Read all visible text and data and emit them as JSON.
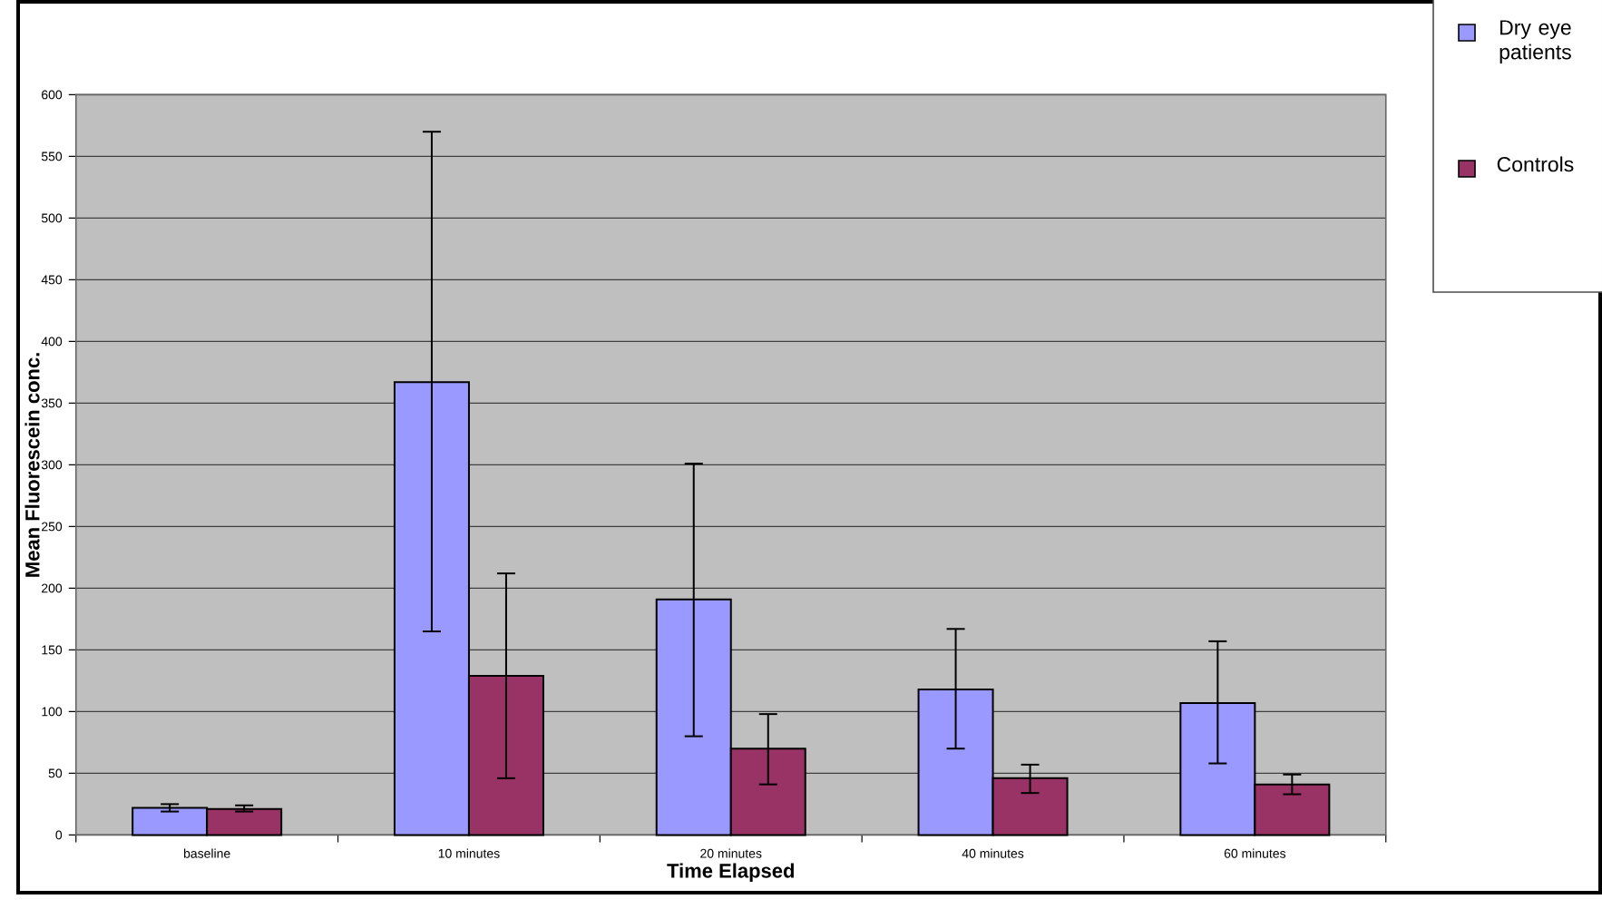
{
  "chart_data": {
    "type": "bar",
    "xlabel": "Time Elapsed",
    "ylabel": "Mean Fluorescein conc.",
    "categories": [
      "baseline",
      "10 minutes",
      "20 minutes",
      "40 minutes",
      "60 minutes"
    ],
    "series": [
      {
        "name": "Dry eye patients",
        "color": "#9999ff",
        "values": [
          22,
          367,
          191,
          118,
          107
        ],
        "errors": [
          [
            19,
            25
          ],
          [
            165,
            570
          ],
          [
            80,
            301
          ],
          [
            70,
            167
          ],
          [
            58,
            157
          ]
        ]
      },
      {
        "name": "Controls",
        "color": "#993366",
        "values": [
          21,
          129,
          70,
          46,
          41
        ],
        "errors": [
          [
            19,
            24
          ],
          [
            46,
            212
          ],
          [
            41,
            98
          ],
          [
            34,
            57
          ],
          [
            33,
            49
          ]
        ]
      }
    ],
    "ylim": [
      0,
      600
    ],
    "yticks": [
      0,
      50,
      100,
      150,
      200,
      250,
      300,
      350,
      400,
      450,
      500,
      550,
      600
    ],
    "grid": "y",
    "legend": "top right"
  }
}
